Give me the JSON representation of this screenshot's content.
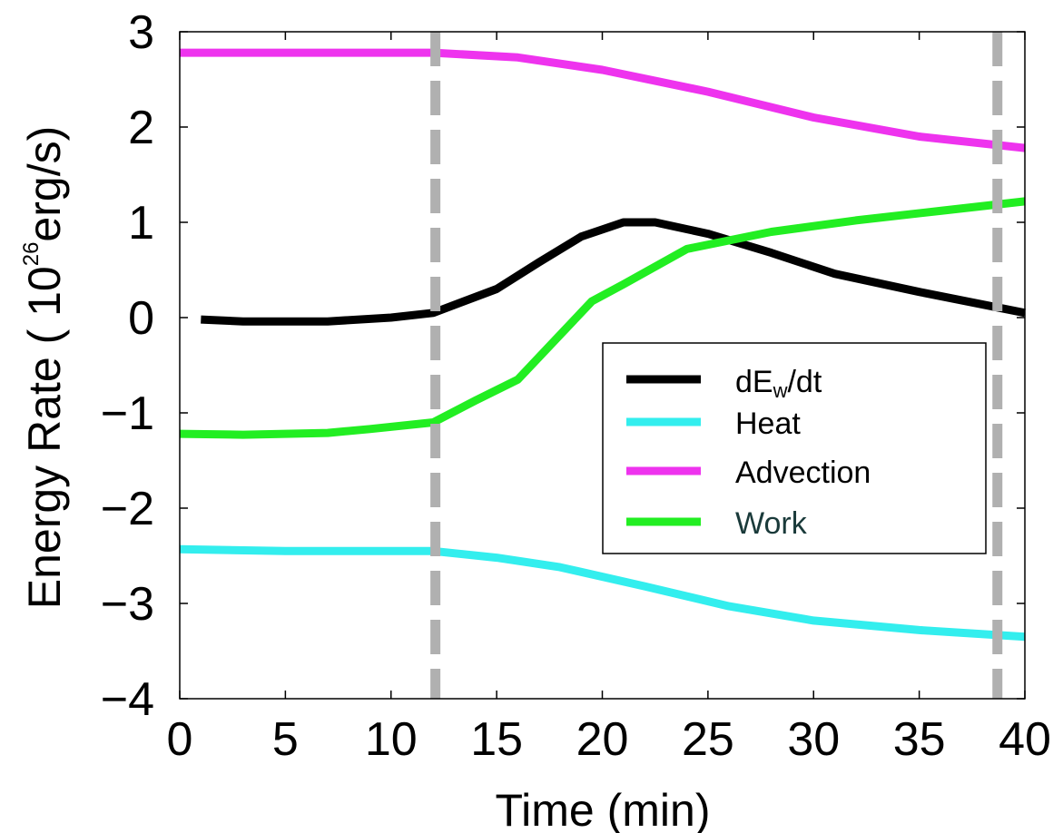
{
  "chart_data": {
    "type": "line",
    "title": "",
    "xlabel": "Time (min)",
    "ylabel": {
      "prefix": "Energy Rate ( 10",
      "exponent": "26",
      "suffix": "erg/s)"
    },
    "xlim": [
      0,
      40
    ],
    "ylim": [
      -4,
      3
    ],
    "xticks": [
      0,
      5,
      10,
      15,
      20,
      25,
      30,
      35,
      40
    ],
    "yticks": [
      -4,
      -3,
      -2,
      -1,
      0,
      1,
      2,
      3
    ],
    "ytick_labels": [
      "−4",
      "−3",
      "−2",
      "−1",
      "0",
      "1",
      "2",
      "3"
    ],
    "grid": false,
    "vlines": [
      {
        "x": 12.1,
        "color": "#b0b0b0",
        "style": "dashed"
      },
      {
        "x": 38.7,
        "color": "#b0b0b0",
        "style": "dashed"
      }
    ],
    "legend_position": "center-right",
    "series": [
      {
        "name": {
          "base": "dE",
          "sub": "w",
          "rest": "/dt"
        },
        "color": "#000000",
        "x": [
          1,
          3,
          7,
          10,
          12,
          15,
          17,
          19,
          21,
          22.5,
          25,
          28,
          31,
          35,
          40
        ],
        "y": [
          -0.02,
          -0.04,
          -0.04,
          0.0,
          0.05,
          0.3,
          0.58,
          0.85,
          1.0,
          1.0,
          0.88,
          0.68,
          0.46,
          0.27,
          0.05
        ]
      },
      {
        "name": "Heat",
        "color": "#33eeee",
        "x": [
          0,
          5,
          12,
          15,
          18,
          22,
          26,
          30,
          35,
          40
        ],
        "y": [
          -2.43,
          -2.45,
          -2.45,
          -2.52,
          -2.62,
          -2.82,
          -3.03,
          -3.18,
          -3.28,
          -3.35
        ]
      },
      {
        "name": "Advection",
        "color": "#ee33ee",
        "x": [
          0,
          5,
          12,
          16,
          20,
          25,
          30,
          35,
          40
        ],
        "y": [
          2.78,
          2.78,
          2.78,
          2.73,
          2.6,
          2.37,
          2.1,
          1.9,
          1.78
        ]
      },
      {
        "name": "Work",
        "color": "#22ee22",
        "name_color": "#1a3a3a",
        "x": [
          0,
          3,
          7,
          9,
          12,
          14,
          16,
          19.5,
          21,
          24,
          28,
          32,
          36,
          40
        ],
        "y": [
          -1.22,
          -1.23,
          -1.21,
          -1.17,
          -1.1,
          -0.87,
          -0.65,
          0.17,
          0.35,
          0.72,
          0.9,
          1.02,
          1.12,
          1.22
        ]
      }
    ]
  }
}
